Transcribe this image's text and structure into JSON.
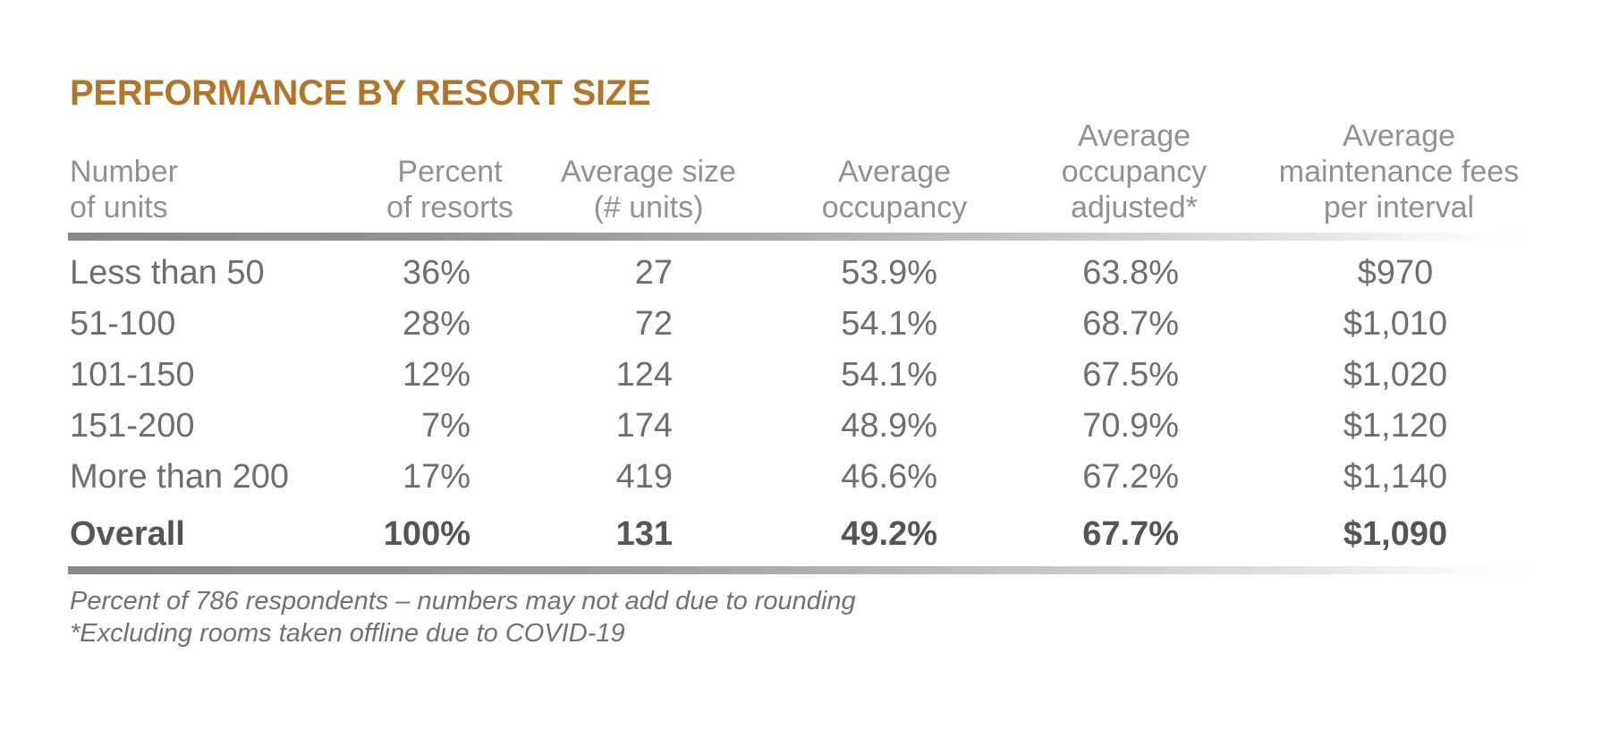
{
  "chart_data": {
    "type": "table",
    "title": "PERFORMANCE BY RESORT SIZE",
    "columns": [
      {
        "id": "number-of-units",
        "lines": [
          "Number",
          "of units"
        ]
      },
      {
        "id": "percent-of-resorts",
        "lines": [
          "Percent",
          "of resorts"
        ]
      },
      {
        "id": "average-size",
        "lines": [
          "Average size",
          "(# units)"
        ]
      },
      {
        "id": "average-occupancy",
        "lines": [
          "Average",
          "occupancy"
        ]
      },
      {
        "id": "average-occupancy-adjusted",
        "lines": [
          "Average",
          "occupancy",
          "adjusted*"
        ]
      },
      {
        "id": "average-maintenance-fees",
        "lines": [
          "Average",
          "maintenance fees",
          "per interval"
        ]
      }
    ],
    "rows": [
      {
        "cells": [
          "Less than 50",
          "36%",
          "27",
          "53.9%",
          "63.8%",
          "$970"
        ],
        "is_summary": false
      },
      {
        "cells": [
          "51-100",
          "28%",
          "72",
          "54.1%",
          "68.7%",
          "$1,010"
        ],
        "is_summary": false
      },
      {
        "cells": [
          "101-150",
          "12%",
          "124",
          "54.1%",
          "67.5%",
          "$1,020"
        ],
        "is_summary": false
      },
      {
        "cells": [
          "151-200",
          "7%",
          "174",
          "48.9%",
          "70.9%",
          "$1,120"
        ],
        "is_summary": false
      },
      {
        "cells": [
          "More than 200",
          "17%",
          "419",
          "46.6%",
          "67.2%",
          "$1,140"
        ],
        "is_summary": false
      },
      {
        "cells": [
          "Overall",
          "100%",
          "131",
          "49.2%",
          "67.7%",
          "$1,090"
        ],
        "is_summary": true
      }
    ],
    "footnotes": [
      "Percent of 786 respondents – numbers may not add due to rounding",
      "*Excluding rooms taken offline due to COVID-19"
    ],
    "colors": {
      "background": "#FFFFFF",
      "title": "#B1762C",
      "header_text": "#8F9194",
      "row_text": "#6D6E71",
      "summary_text": "#545557",
      "footnote_text": "#707175",
      "rule_start": "#87898C",
      "rule_end": "#FFFFFF"
    }
  }
}
